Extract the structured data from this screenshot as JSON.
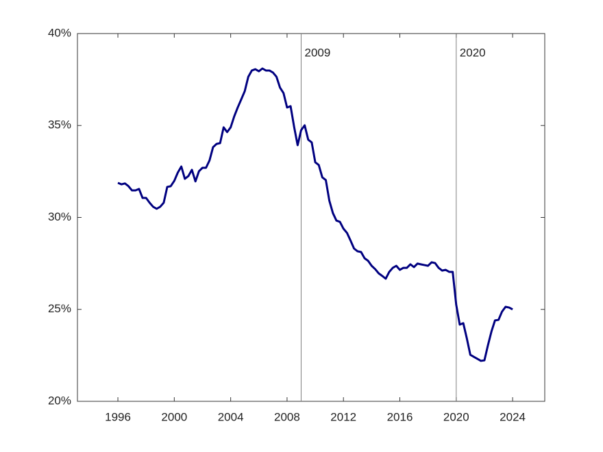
{
  "chart_data": {
    "type": "line",
    "x": [
      1996,
      1996.25,
      1996.5,
      1996.75,
      1997,
      1997.25,
      1997.5,
      1997.75,
      1998,
      1998.25,
      1998.5,
      1998.75,
      1999,
      1999.25,
      1999.5,
      1999.75,
      2000,
      2000.25,
      2000.5,
      2000.75,
      2001,
      2001.25,
      2001.5,
      2001.75,
      2002,
      2002.25,
      2002.5,
      2002.75,
      2003,
      2003.25,
      2003.5,
      2003.75,
      2004,
      2004.25,
      2004.5,
      2004.75,
      2005,
      2005.25,
      2005.5,
      2005.75,
      2006,
      2006.25,
      2006.5,
      2006.75,
      2007,
      2007.25,
      2007.5,
      2007.75,
      2008,
      2008.25,
      2008.5,
      2008.75,
      2009,
      2009.25,
      2009.5,
      2009.75,
      2010,
      2010.25,
      2010.5,
      2010.75,
      2011,
      2011.25,
      2011.5,
      2011.75,
      2012,
      2012.25,
      2012.5,
      2012.75,
      2013,
      2013.25,
      2013.5,
      2013.75,
      2014,
      2014.25,
      2014.5,
      2014.75,
      2015,
      2015.25,
      2015.5,
      2015.75,
      2016,
      2016.25,
      2016.5,
      2016.75,
      2017,
      2017.25,
      2017.5,
      2017.75,
      2018,
      2018.25,
      2018.5,
      2018.75,
      2019,
      2019.25,
      2019.5,
      2019.75,
      2020,
      2020.25,
      2020.5,
      2020.75,
      2021,
      2021.25,
      2021.5,
      2021.75,
      2022,
      2022.25,
      2022.5,
      2022.75,
      2023,
      2023.25,
      2023.5,
      2023.75,
      2024
    ],
    "series": [
      {
        "color": "#000080",
        "values": [
          31.88,
          31.8,
          31.85,
          31.7,
          31.47,
          31.47,
          31.55,
          31.06,
          31.06,
          30.8,
          30.58,
          30.47,
          30.58,
          30.8,
          31.66,
          31.7,
          31.99,
          32.44,
          32.77,
          32.1,
          32.25,
          32.59,
          31.96,
          32.51,
          32.7,
          32.7,
          33.1,
          33.82,
          34.0,
          34.04,
          34.9,
          34.64,
          34.9,
          35.49,
          35.98,
          36.42,
          36.87,
          37.65,
          37.99,
          38.06,
          37.95,
          38.1,
          37.99,
          37.99,
          37.88,
          37.65,
          37.06,
          36.76,
          35.98,
          36.05,
          34.93,
          33.93,
          34.75,
          35.01,
          34.23,
          34.08,
          33.0,
          32.85,
          32.18,
          32.03,
          30.91,
          30.24,
          29.83,
          29.76,
          29.39,
          29.16,
          28.75,
          28.31,
          28.16,
          28.12,
          27.78,
          27.64,
          27.37,
          27.19,
          26.96,
          26.82,
          26.67,
          27.04,
          27.26,
          27.37,
          27.15,
          27.26,
          27.26,
          27.45,
          27.3,
          27.49,
          27.45,
          27.41,
          27.37,
          27.56,
          27.52,
          27.26,
          27.11,
          27.15,
          27.04,
          27.04,
          25.25,
          24.17,
          24.25,
          23.43,
          22.53,
          22.42,
          22.31,
          22.2,
          22.23,
          23.05,
          23.8,
          24.4,
          24.43,
          24.88,
          25.14,
          25.1,
          25.0
        ]
      }
    ],
    "xlim": [
      1993.13,
      2026.28
    ],
    "xticks": [
      1996,
      2000,
      2004,
      2008,
      2012,
      2016,
      2020,
      2024
    ],
    "ylim": [
      20,
      40
    ],
    "yticks": [
      {
        "value": 20,
        "label": "20%"
      },
      {
        "value": 25,
        "label": "25%"
      },
      {
        "value": 30,
        "label": "30%"
      },
      {
        "value": 35,
        "label": "35%"
      },
      {
        "value": 40,
        "label": "40%"
      }
    ],
    "vlines": [
      {
        "x": 2009,
        "label": "2009",
        "color": "#808080"
      },
      {
        "x": 2020,
        "label": "2020",
        "color": "#808080"
      }
    ],
    "grid": false
  }
}
